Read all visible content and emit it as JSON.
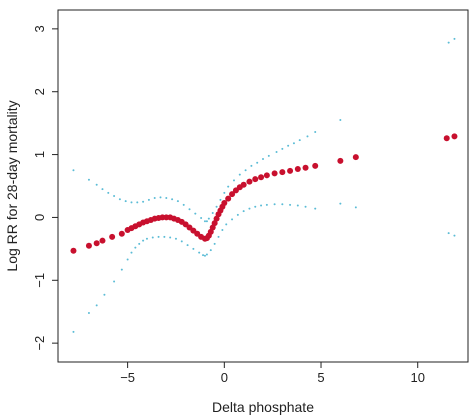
{
  "chart_data": {
    "type": "scatter",
    "title": "",
    "xlabel": "Delta phosphate",
    "ylabel": "Log RR for 28-day mortality",
    "xlim": [
      -8.6,
      12.6
    ],
    "ylim": [
      -2.3,
      3.3
    ],
    "xticks": [
      -5,
      0,
      5,
      10
    ],
    "yticks": [
      -2,
      -1,
      0,
      1,
      2,
      3
    ],
    "grid": false,
    "colors": {
      "estimate": "#c8102e",
      "ci": "#5bbcd6",
      "axis": "#222222"
    },
    "series": [
      {
        "role": "estimate",
        "points": [
          [
            -7.8,
            -0.53
          ],
          [
            -7.0,
            -0.45
          ],
          [
            -6.6,
            -0.41
          ],
          [
            -6.3,
            -0.37
          ],
          [
            -5.8,
            -0.31
          ],
          [
            -5.3,
            -0.26
          ],
          [
            -5.0,
            -0.2
          ],
          [
            -4.8,
            -0.17
          ],
          [
            -4.6,
            -0.14
          ],
          [
            -4.4,
            -0.11
          ],
          [
            -4.2,
            -0.08
          ],
          [
            -4.0,
            -0.06
          ],
          [
            -3.8,
            -0.04
          ],
          [
            -3.6,
            -0.02
          ],
          [
            -3.4,
            -0.01
          ],
          [
            -3.2,
            0.0
          ],
          [
            -3.0,
            0.0
          ],
          [
            -2.8,
            0.0
          ],
          [
            -2.6,
            -0.02
          ],
          [
            -2.4,
            -0.04
          ],
          [
            -2.2,
            -0.07
          ],
          [
            -2.0,
            -0.11
          ],
          [
            -1.8,
            -0.16
          ],
          [
            -1.6,
            -0.21
          ],
          [
            -1.4,
            -0.26
          ],
          [
            -1.2,
            -0.31
          ],
          [
            -1.0,
            -0.34
          ],
          [
            -0.9,
            -0.33
          ],
          [
            -0.8,
            -0.29
          ],
          [
            -0.7,
            -0.23
          ],
          [
            -0.6,
            -0.16
          ],
          [
            -0.5,
            -0.09
          ],
          [
            -0.4,
            -0.02
          ],
          [
            -0.3,
            0.05
          ],
          [
            -0.2,
            0.11
          ],
          [
            -0.1,
            0.17
          ],
          [
            0.0,
            0.23
          ],
          [
            0.2,
            0.3
          ],
          [
            0.4,
            0.37
          ],
          [
            0.6,
            0.43
          ],
          [
            0.8,
            0.48
          ],
          [
            1.0,
            0.52
          ],
          [
            1.3,
            0.57
          ],
          [
            1.6,
            0.61
          ],
          [
            1.9,
            0.64
          ],
          [
            2.2,
            0.67
          ],
          [
            2.6,
            0.7
          ],
          [
            3.0,
            0.72
          ],
          [
            3.4,
            0.74
          ],
          [
            3.8,
            0.77
          ],
          [
            4.2,
            0.79
          ],
          [
            4.7,
            0.82
          ],
          [
            6.0,
            0.9
          ],
          [
            6.8,
            0.96
          ],
          [
            11.5,
            1.26
          ],
          [
            11.9,
            1.29
          ]
        ]
      },
      {
        "role": "ci-upper",
        "points": [
          [
            -7.8,
            0.75
          ],
          [
            -7.0,
            0.6
          ],
          [
            -6.6,
            0.52
          ],
          [
            -6.3,
            0.45
          ],
          [
            -6.0,
            0.39
          ],
          [
            -5.7,
            0.34
          ],
          [
            -5.4,
            0.29
          ],
          [
            -5.1,
            0.26
          ],
          [
            -4.8,
            0.24
          ],
          [
            -4.5,
            0.24
          ],
          [
            -4.2,
            0.25
          ],
          [
            -3.9,
            0.28
          ],
          [
            -3.6,
            0.31
          ],
          [
            -3.3,
            0.32
          ],
          [
            -3.0,
            0.31
          ],
          [
            -2.7,
            0.29
          ],
          [
            -2.4,
            0.26
          ],
          [
            -2.1,
            0.2
          ],
          [
            -1.8,
            0.13
          ],
          [
            -1.5,
            0.06
          ],
          [
            -1.2,
            -0.01
          ],
          [
            -1.0,
            -0.06
          ],
          [
            -0.9,
            -0.06
          ],
          [
            -0.8,
            -0.02
          ],
          [
            -0.6,
            0.07
          ],
          [
            -0.4,
            0.17
          ],
          [
            -0.2,
            0.28
          ],
          [
            0.0,
            0.39
          ],
          [
            0.2,
            0.49
          ],
          [
            0.5,
            0.59
          ],
          [
            0.8,
            0.68
          ],
          [
            1.1,
            0.75
          ],
          [
            1.4,
            0.82
          ],
          [
            1.7,
            0.87
          ],
          [
            2.0,
            0.93
          ],
          [
            2.3,
            0.98
          ],
          [
            2.7,
            1.04
          ],
          [
            3.0,
            1.09
          ],
          [
            3.3,
            1.14
          ],
          [
            3.6,
            1.18
          ],
          [
            3.9,
            1.23
          ],
          [
            4.3,
            1.29
          ],
          [
            4.7,
            1.36
          ],
          [
            6.0,
            1.55
          ],
          [
            11.6,
            2.78
          ],
          [
            11.9,
            2.84
          ]
        ]
      },
      {
        "role": "ci-lower",
        "points": [
          [
            -7.8,
            -1.82
          ],
          [
            -7.0,
            -1.52
          ],
          [
            -6.6,
            -1.4
          ],
          [
            -6.2,
            -1.23
          ],
          [
            -5.7,
            -1.02
          ],
          [
            -5.3,
            -0.83
          ],
          [
            -5.0,
            -0.67
          ],
          [
            -4.8,
            -0.56
          ],
          [
            -4.6,
            -0.48
          ],
          [
            -4.4,
            -0.42
          ],
          [
            -4.2,
            -0.37
          ],
          [
            -4.0,
            -0.34
          ],
          [
            -3.7,
            -0.32
          ],
          [
            -3.4,
            -0.31
          ],
          [
            -3.1,
            -0.31
          ],
          [
            -2.8,
            -0.32
          ],
          [
            -2.5,
            -0.34
          ],
          [
            -2.2,
            -0.38
          ],
          [
            -1.9,
            -0.44
          ],
          [
            -1.6,
            -0.5
          ],
          [
            -1.3,
            -0.56
          ],
          [
            -1.1,
            -0.6
          ],
          [
            -1.0,
            -0.61
          ],
          [
            -0.9,
            -0.59
          ],
          [
            -0.7,
            -0.52
          ],
          [
            -0.5,
            -0.42
          ],
          [
            -0.3,
            -0.31
          ],
          [
            -0.1,
            -0.2
          ],
          [
            0.1,
            -0.11
          ],
          [
            0.4,
            -0.03
          ],
          [
            0.7,
            0.04
          ],
          [
            1.0,
            0.1
          ],
          [
            1.3,
            0.14
          ],
          [
            1.6,
            0.17
          ],
          [
            1.9,
            0.19
          ],
          [
            2.2,
            0.2
          ],
          [
            2.6,
            0.21
          ],
          [
            3.0,
            0.21
          ],
          [
            3.4,
            0.2
          ],
          [
            3.8,
            0.19
          ],
          [
            4.2,
            0.17
          ],
          [
            4.7,
            0.14
          ],
          [
            6.0,
            0.22
          ],
          [
            6.8,
            0.16
          ],
          [
            11.6,
            -0.25
          ],
          [
            11.9,
            -0.29
          ]
        ]
      }
    ]
  }
}
